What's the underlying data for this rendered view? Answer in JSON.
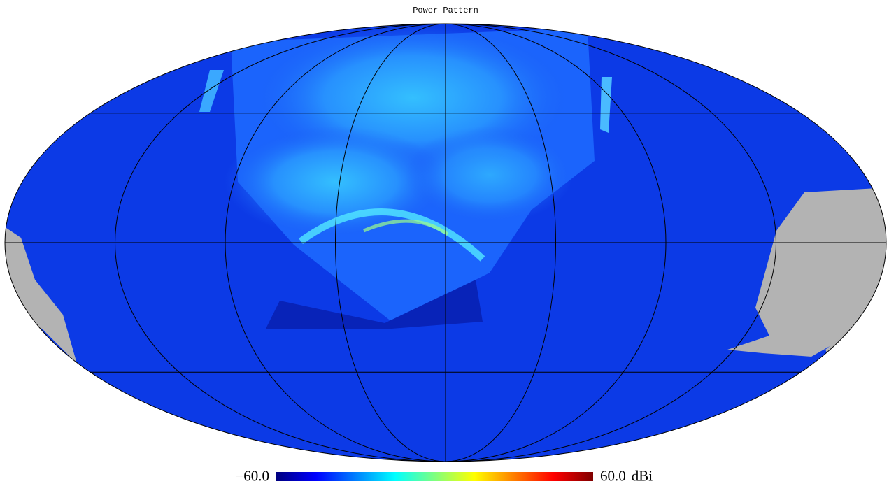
{
  "chart_data": {
    "type": "mollweide",
    "title": "Power Pattern",
    "colormap": "jet",
    "graticule": true,
    "clim": [
      -60,
      60
    ],
    "colorbar_ticks": [
      {
        "value": -60,
        "label": "−60.0"
      },
      {
        "value": 60,
        "label": "60.0"
      }
    ],
    "unit": "dBi"
  }
}
